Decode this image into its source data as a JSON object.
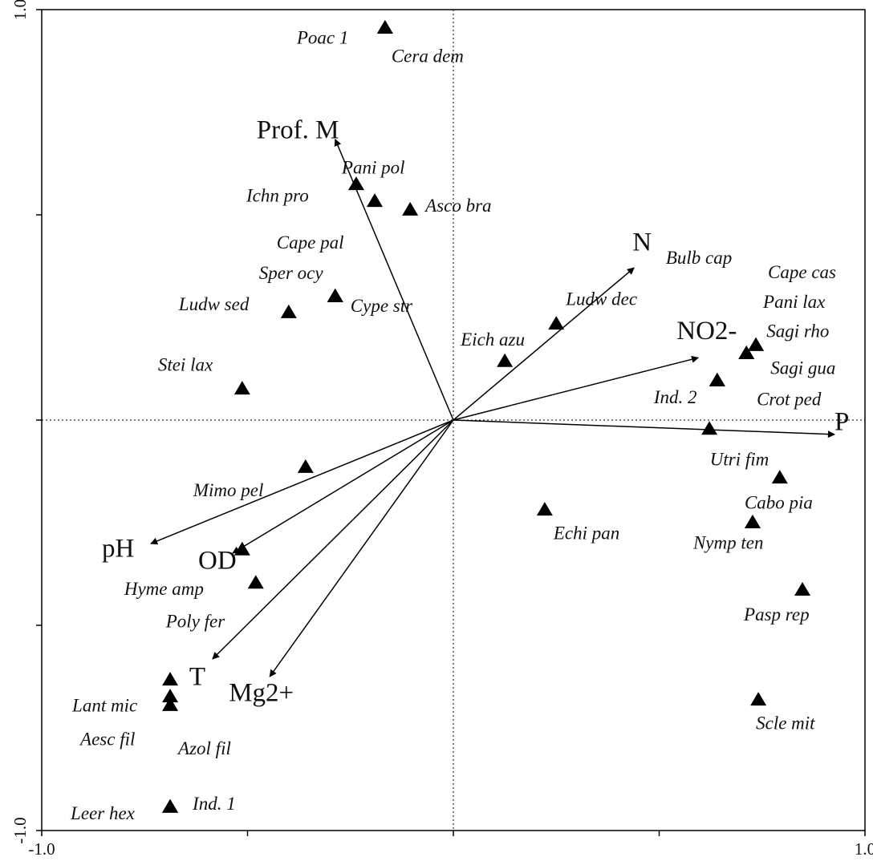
{
  "chart_data": {
    "type": "biplot",
    "xlim": [
      -1,
      1
    ],
    "ylim": [
      -1,
      1
    ],
    "xticks": [
      {
        "value": -1,
        "label": "-1.0"
      },
      {
        "value": -0.5,
        "label": null
      },
      {
        "value": 0,
        "label": null
      },
      {
        "value": 0.5,
        "label": null
      },
      {
        "value": 1,
        "label": "1.0"
      }
    ],
    "yticks": [
      {
        "value": -1,
        "label": "-1.0"
      },
      {
        "value": -0.5,
        "label": null
      },
      {
        "value": 0,
        "label": null
      },
      {
        "value": 0.5,
        "label": null
      },
      {
        "value": 1,
        "label": "1.0"
      }
    ],
    "zero_lines": true,
    "color": "#000000",
    "points": [
      {
        "name": "Poac 1",
        "x": -0.166,
        "y": 0.957
      },
      {
        "name": "Cera dem",
        "x": -0.166,
        "y": 0.957
      },
      {
        "name": "Pani pol",
        "x": -0.236,
        "y": 0.576
      },
      {
        "name": "Ichn pro",
        "x": -0.191,
        "y": 0.535
      },
      {
        "name": "Asco bra",
        "x": -0.105,
        "y": 0.514
      },
      {
        "name": "Cape pal",
        "x": -0.287,
        "y": 0.303
      },
      {
        "name": "Sper ocy",
        "x": -0.287,
        "y": 0.303
      },
      {
        "name": "Cype str",
        "x": -0.287,
        "y": 0.303
      },
      {
        "name": "Ludw sed",
        "x": -0.4,
        "y": 0.264
      },
      {
        "name": "Stei lax",
        "x": -0.513,
        "y": 0.078
      },
      {
        "name": "Eich azu",
        "x": 0.125,
        "y": 0.145
      },
      {
        "name": "Ludw dec",
        "x": 0.25,
        "y": 0.236
      },
      {
        "name": "Bulb cap",
        "x": 0.641,
        "y": 0.098
      },
      {
        "name": "Cape cas",
        "x": 0.735,
        "y": 0.184
      },
      {
        "name": "Pani lax",
        "x": 0.735,
        "y": 0.184
      },
      {
        "name": "Sagi rho",
        "x": 0.712,
        "y": 0.164
      },
      {
        "name": "Sagi gua",
        "x": 0.712,
        "y": 0.164
      },
      {
        "name": "Ind. 2",
        "x": 0.641,
        "y": 0.098
      },
      {
        "name": "Crot ped",
        "x": 0.622,
        "y": -0.02
      },
      {
        "name": "Utri fim",
        "x": 0.793,
        "y": -0.139
      },
      {
        "name": "Cabo pia",
        "x": 0.727,
        "y": -0.248
      },
      {
        "name": "Nymp ten",
        "x": 0.727,
        "y": -0.248
      },
      {
        "name": "Echi pan",
        "x": 0.222,
        "y": -0.217
      },
      {
        "name": "Mimo pel",
        "x": -0.359,
        "y": -0.113
      },
      {
        "name": "Hyme amp",
        "x": -0.513,
        "y": -0.314
      },
      {
        "name": "Poly fer",
        "x": -0.48,
        "y": -0.395
      },
      {
        "name": "Lant mic",
        "x": -0.688,
        "y": -0.631
      },
      {
        "name": "Aesc fil",
        "x": -0.688,
        "y": -0.672
      },
      {
        "name": "Azol fil",
        "x": -0.688,
        "y": -0.693
      },
      {
        "name": "Leer hex",
        "x": -0.688,
        "y": -0.941
      },
      {
        "name": "Ind. 1",
        "x": -0.688,
        "y": -0.941
      },
      {
        "name": "Pasp rep",
        "x": 0.848,
        "y": -0.412
      },
      {
        "name": "Scle mit",
        "x": 0.741,
        "y": -0.68
      }
    ],
    "vectors": [
      {
        "name": "Prof. M",
        "x": -0.287,
        "y": 0.684
      },
      {
        "name": "N",
        "x": 0.439,
        "y": 0.371
      },
      {
        "name": "NO2-",
        "x": 0.595,
        "y": 0.152
      },
      {
        "name": "P",
        "x": 0.926,
        "y": -0.035
      },
      {
        "name": "pH",
        "x": -0.735,
        "y": -0.301
      },
      {
        "name": "OD",
        "x": -0.536,
        "y": -0.324
      },
      {
        "name": "T",
        "x": -0.585,
        "y": -0.582
      },
      {
        "name": "Mg2+",
        "x": -0.446,
        "y": -0.625
      }
    ]
  }
}
